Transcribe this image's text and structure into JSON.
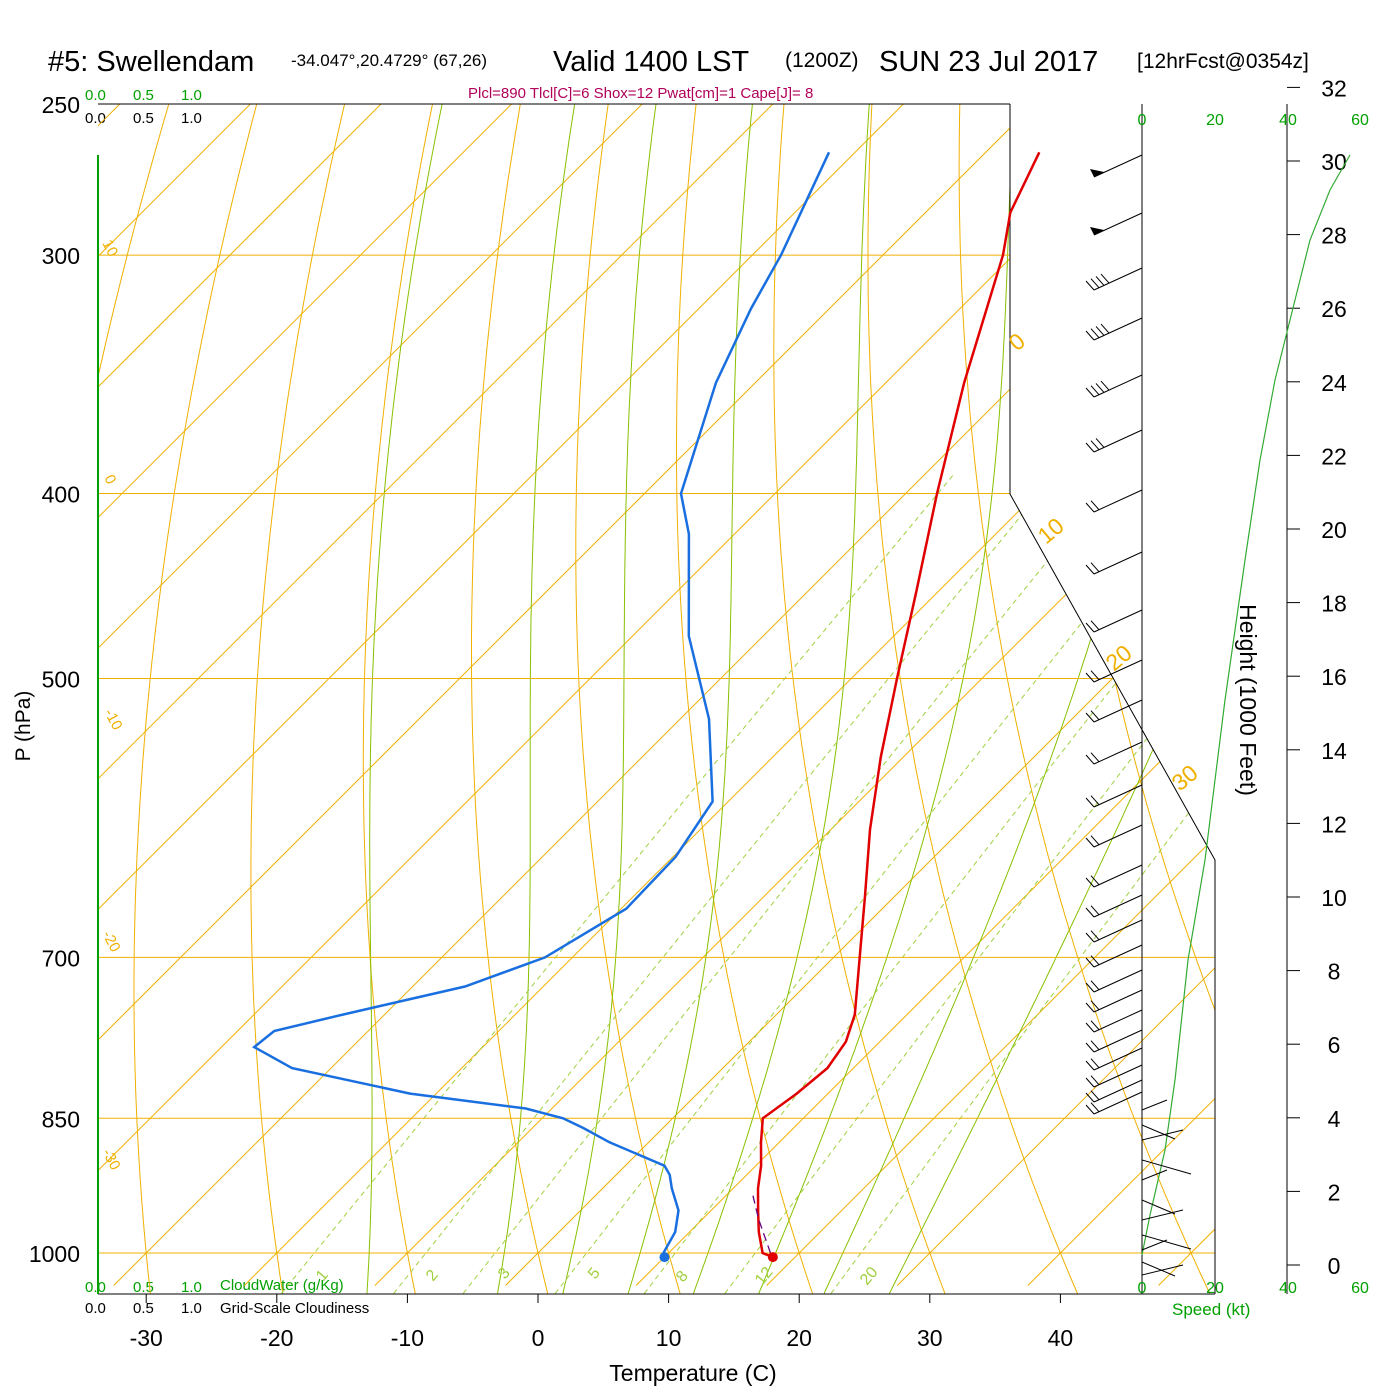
{
  "header": {
    "station": "#5: Swellendam",
    "coords": "-34.047°,20.4729° (67,26)",
    "valid": "Valid 1400 LST",
    "utc": "(1200Z)",
    "date": "SUN 23 Jul 2017",
    "fcst": "[12hrFcst@0354z]",
    "indices": "Plcl=890 Tlcl[C]=6 Shox=12 Pwat[cm]=1 Cape[J]= 8"
  },
  "colors": {
    "temperature": "#e00000",
    "dewpoint": "#1a6fe0",
    "isobar_isotherm": "#f0b000",
    "moist_adiabat": "#88c000",
    "mixing_ratio": "#a0d040",
    "green_text": "#00a000",
    "indices_text": "#b0005a",
    "height_curve": "#33aa33"
  },
  "chart_data": {
    "type": "skew-t",
    "title": "#5: Swellendam",
    "xlabel": "Temperature (C)",
    "ylabel": "P (hPa)",
    "right_ylabel": "Height (1000 Feet)",
    "x_ticks": [
      "-30",
      "-20",
      "-10",
      "0",
      "10",
      "20",
      "30",
      "40"
    ],
    "pressure_levels": [
      250,
      300,
      400,
      500,
      700,
      850,
      1000
    ],
    "pressure_labels": [
      "250",
      "300",
      "400",
      "500",
      "700",
      "850",
      "1000"
    ],
    "height_ticks": [
      "0",
      "2",
      "4",
      "6",
      "8",
      "10",
      "12",
      "14",
      "16",
      "18",
      "20",
      "22",
      "24",
      "26",
      "28",
      "30",
      "32"
    ],
    "speed_ticks": [
      "0",
      "20",
      "40",
      "60"
    ],
    "speed_label": "Speed (kt)",
    "cloud_scale": [
      "0.0",
      "0.5",
      "1.0"
    ],
    "cloudwater_label": "CloudWater (g/Kg)",
    "cloudiness_label": "Grid-Scale Cloudiness",
    "isotherm_labels": [
      "10",
      "0",
      "-10",
      "-20",
      "-30",
      "0",
      "10",
      "20",
      "30"
    ],
    "mixing_ratio_labels": [
      "1",
      "2",
      "3",
      "5",
      "8",
      "12",
      "20"
    ],
    "temperature_profile": [
      {
        "p": 1005,
        "t": 18.3
      },
      {
        "p": 1000,
        "t": 17.2
      },
      {
        "p": 975,
        "t": 15.3
      },
      {
        "p": 950,
        "t": 13.6
      },
      {
        "p": 925,
        "t": 11.9
      },
      {
        "p": 900,
        "t": 10.4
      },
      {
        "p": 875,
        "t": 8.6
      },
      {
        "p": 850,
        "t": 6.9
      },
      {
        "p": 825,
        "t": 7.6
      },
      {
        "p": 800,
        "t": 8.0
      },
      {
        "p": 775,
        "t": 7.4
      },
      {
        "p": 750,
        "t": 6.0
      },
      {
        "p": 700,
        "t": 2.0
      },
      {
        "p": 650,
        "t": -2.3
      },
      {
        "p": 600,
        "t": -7.0
      },
      {
        "p": 550,
        "t": -11.7
      },
      {
        "p": 500,
        "t": -16.5
      },
      {
        "p": 450,
        "t": -21.7
      },
      {
        "p": 400,
        "t": -27.6
      },
      {
        "p": 350,
        "t": -34.0
      },
      {
        "p": 300,
        "t": -40.8
      },
      {
        "p": 285,
        "t": -43.5
      },
      {
        "p": 265,
        "t": -45.9
      }
    ],
    "dewpoint_profile": [
      {
        "p": 1005,
        "t": 10.0
      },
      {
        "p": 1000,
        "t": 9.6
      },
      {
        "p": 975,
        "t": 8.9
      },
      {
        "p": 950,
        "t": 7.5
      },
      {
        "p": 925,
        "t": 5.3
      },
      {
        "p": 910,
        "t": 4.1
      },
      {
        "p": 900,
        "t": 3.0
      },
      {
        "p": 875,
        "t": -3.0
      },
      {
        "p": 860,
        "t": -6.1
      },
      {
        "p": 850,
        "t": -8.4
      },
      {
        "p": 840,
        "t": -12.0
      },
      {
        "p": 825,
        "t": -22.0
      },
      {
        "p": 800,
        "t": -33.0
      },
      {
        "p": 780,
        "t": -37.5
      },
      {
        "p": 765,
        "t": -37.2
      },
      {
        "p": 750,
        "t": -33.2
      },
      {
        "p": 725,
        "t": -26.0
      },
      {
        "p": 700,
        "t": -22.1
      },
      {
        "p": 660,
        "t": -19.6
      },
      {
        "p": 620,
        "t": -19.8
      },
      {
        "p": 580,
        "t": -21.2
      },
      {
        "p": 525,
        "t": -27.8
      },
      {
        "p": 475,
        "t": -35.7
      },
      {
        "p": 420,
        "t": -43.5
      },
      {
        "p": 400,
        "t": -47.2
      },
      {
        "p": 350,
        "t": -53.0
      },
      {
        "p": 320,
        "t": -56.0
      },
      {
        "p": 300,
        "t": -57.8
      },
      {
        "p": 265,
        "t": -62.0
      }
    ],
    "parcel_path": [
      {
        "p": 1000,
        "t": 17.8
      },
      {
        "p": 960,
        "t": 14.3
      },
      {
        "p": 930,
        "t": 11.8
      }
    ],
    "surface_temperature": 18.3,
    "surface_dewpoint": 10.0
  }
}
